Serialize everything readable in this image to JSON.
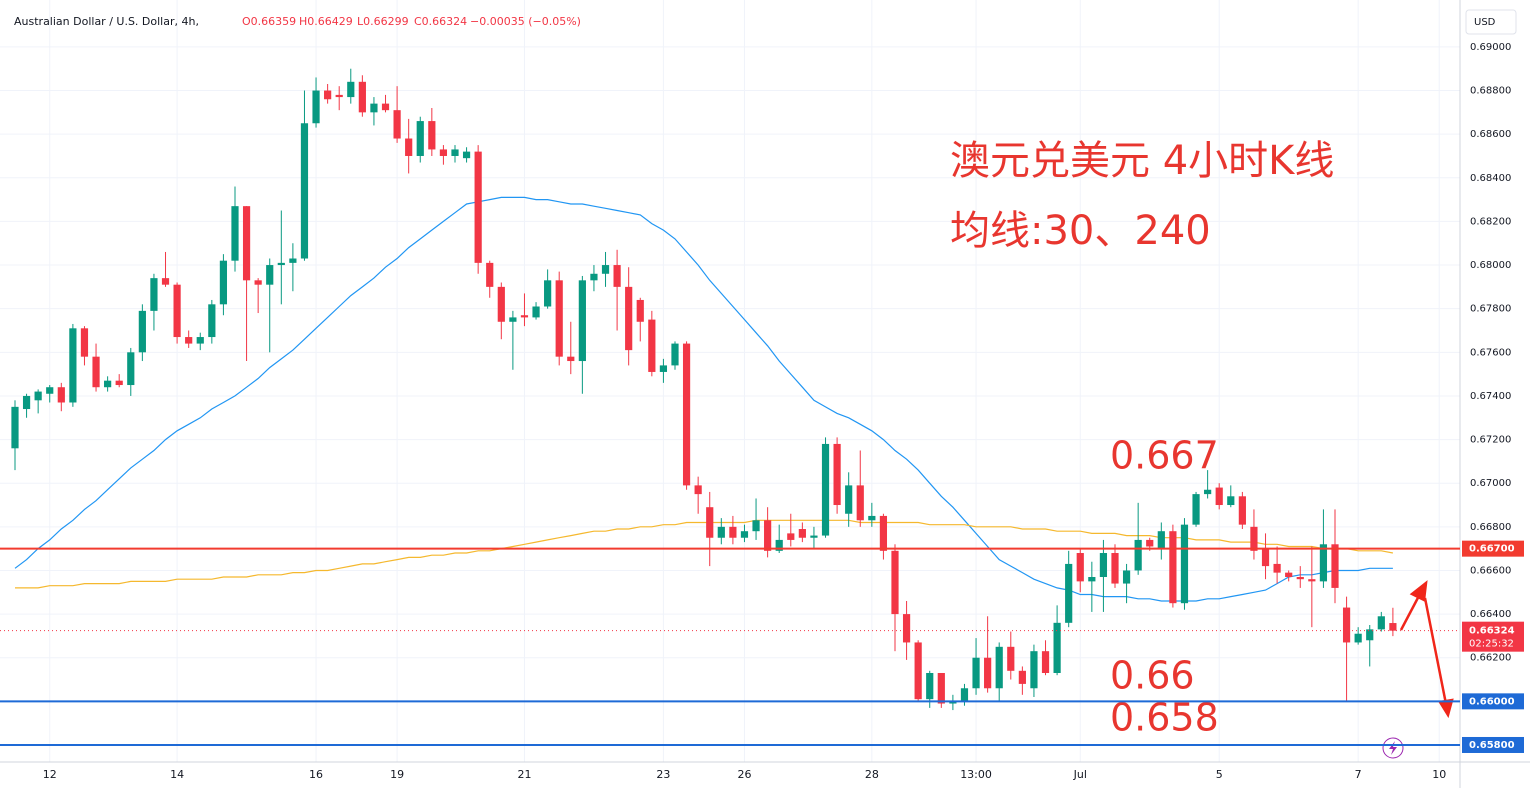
{
  "chart_data": {
    "type": "candlestick",
    "title": "Australian Dollar / U.S. Dollar, 4h,",
    "ohlc_header": [
      "O0.66359",
      "H0.66429",
      "L0.66299",
      "C0.66324",
      "−0.00035 (−0.05%)"
    ],
    "currency": "USD",
    "annotations": [
      "澳元兑美元 4小时K线",
      "均线:30、240",
      "0.667",
      "0.66",
      "0.658"
    ],
    "categories": [
      null,
      null,
      null,
      "12",
      null,
      null,
      null,
      null,
      null,
      null,
      null,
      null,
      null,
      null,
      "14",
      null,
      null,
      null,
      null,
      null,
      null,
      null,
      null,
      null,
      null,
      null,
      "16",
      null,
      null,
      null,
      null,
      null,
      null,
      "19",
      null,
      null,
      null,
      null,
      null,
      null,
      null,
      null,
      null,
      null,
      "21",
      null,
      null,
      null,
      null,
      null,
      null,
      null,
      null,
      null,
      null,
      null,
      "23",
      null,
      null,
      null,
      null,
      null,
      null,
      "26",
      null,
      null,
      null,
      null,
      null,
      null,
      null,
      null,
      null,
      null,
      "28",
      null,
      null,
      null,
      null,
      null,
      null,
      null,
      null,
      "13:00",
      null,
      null,
      null,
      null,
      null,
      null,
      null,
      null,
      "Jul",
      null,
      null,
      null,
      null,
      null,
      null,
      null,
      null,
      null,
      null,
      null,
      "5",
      null,
      null,
      null,
      null,
      null,
      null,
      null,
      null,
      null,
      null,
      null,
      "7",
      null,
      null,
      null,
      null,
      null,
      null,
      "10"
    ],
    "open": [
      0.6716,
      0.6734,
      0.6738,
      0.6741,
      0.6744,
      0.6737,
      0.6771,
      0.6758,
      0.6744,
      0.6747,
      0.6745,
      0.676,
      0.6779,
      0.6794,
      0.6791,
      0.6767,
      0.6764,
      0.6767,
      0.6782,
      0.6802,
      0.6827,
      0.6793,
      0.6791,
      0.68,
      0.6801,
      0.6803,
      0.6865,
      0.688,
      0.6878,
      0.6877,
      0.6884,
      0.687,
      0.6874,
      0.6871,
      0.6858,
      0.685,
      0.6866,
      0.6853,
      0.685,
      0.6849,
      0.6852,
      0.6801,
      0.679,
      0.6774,
      0.6777,
      0.6776,
      0.6781,
      0.6793,
      0.6758,
      0.6756,
      0.6793,
      0.6796,
      0.68,
      0.679,
      0.6784,
      0.6775,
      0.6751,
      0.6754,
      0.6764,
      0.6699,
      0.6689,
      0.6675,
      0.668,
      0.6675,
      0.6678,
      0.6683,
      0.6669,
      0.6677,
      0.6679,
      0.6675,
      0.6676,
      0.6718,
      0.6686,
      0.6699,
      0.6683,
      0.6685,
      0.6669,
      0.664,
      0.6627,
      0.6601,
      0.6613,
      0.6599,
      0.66,
      0.6606,
      0.662,
      0.6606,
      0.6625,
      0.6614,
      0.6606,
      0.6623,
      0.6613,
      0.6636,
      0.6668,
      0.6655,
      0.6657,
      0.6668,
      0.6654,
      0.666,
      0.6674,
      0.667,
      0.6678,
      0.6645,
      0.6681,
      0.6695,
      0.6698,
      0.669,
      0.6694,
      0.668,
      0.667,
      0.6663,
      0.6659,
      0.6657,
      0.6656,
      0.6655,
      0.6672,
      0.6643,
      0.6627,
      0.6628,
      0.6633,
      0.66359,
      null,
      null,
      null,
      null
    ],
    "high": [
      0.6738,
      0.6741,
      0.6743,
      0.6745,
      0.6746,
      0.6773,
      0.6772,
      0.6764,
      0.6749,
      0.675,
      0.6762,
      0.6782,
      0.6796,
      0.6806,
      0.6792,
      0.677,
      0.6769,
      0.6784,
      0.6805,
      0.6836,
      0.6827,
      0.6794,
      0.6803,
      0.6825,
      0.681,
      0.688,
      0.6886,
      0.6883,
      0.6882,
      0.689,
      0.6887,
      0.6877,
      0.6878,
      0.6882,
      0.6867,
      0.6868,
      0.6872,
      0.6855,
      0.6855,
      0.6854,
      0.6855,
      0.6802,
      0.6792,
      0.6779,
      0.6787,
      0.6783,
      0.6798,
      0.6797,
      0.6774,
      0.6795,
      0.68,
      0.6806,
      0.6807,
      0.6799,
      0.6785,
      0.6779,
      0.6757,
      0.6765,
      0.6765,
      0.6703,
      0.6696,
      0.6684,
      0.6685,
      0.6681,
      0.6693,
      0.6689,
      0.6681,
      0.6686,
      0.6682,
      0.668,
      0.6721,
      0.6721,
      0.6705,
      0.6715,
      0.6691,
      0.6686,
      0.6672,
      0.6646,
      0.6628,
      0.6614,
      0.6613,
      0.6603,
      0.6608,
      0.6629,
      0.6639,
      0.6627,
      0.6632,
      0.6616,
      0.6626,
      0.6628,
      0.6644,
      0.6669,
      0.667,
      0.6664,
      0.6674,
      0.6672,
      0.6663,
      0.6691,
      0.6675,
      0.6682,
      0.6681,
      0.6684,
      0.6696,
      0.6706,
      0.67,
      0.6699,
      0.6696,
      0.6688,
      0.6677,
      0.6671,
      0.666,
      0.6662,
      0.6671,
      0.6688,
      0.6688,
      0.6648,
      0.6634,
      0.6635,
      0.6641,
      0.66429,
      null,
      null,
      null,
      null
    ],
    "low": [
      0.6706,
      0.673,
      0.6732,
      0.6737,
      0.6733,
      0.6735,
      0.6754,
      0.6742,
      0.6742,
      0.6744,
      0.674,
      0.6756,
      0.677,
      0.679,
      0.6764,
      0.6762,
      0.6761,
      0.6764,
      0.6777,
      0.6797,
      0.6756,
      0.6778,
      0.676,
      0.6782,
      0.6788,
      0.6802,
      0.6863,
      0.6874,
      0.6871,
      0.6874,
      0.6868,
      0.6864,
      0.687,
      0.6856,
      0.6842,
      0.6847,
      0.685,
      0.6846,
      0.6847,
      0.6847,
      0.6796,
      0.6785,
      0.6766,
      0.6752,
      0.6772,
      0.6775,
      0.678,
      0.6754,
      0.675,
      0.6741,
      0.6788,
      0.679,
      0.677,
      0.6754,
      0.6765,
      0.6749,
      0.6746,
      0.6752,
      0.6697,
      0.6686,
      0.6662,
      0.6672,
      0.6672,
      0.6673,
      0.6674,
      0.6666,
      0.6668,
      0.6671,
      0.6673,
      0.667,
      0.6675,
      0.6686,
      0.668,
      0.668,
      0.668,
      0.6665,
      0.6623,
      0.6619,
      0.66,
      0.6597,
      0.6597,
      0.6596,
      0.6598,
      0.6603,
      0.6604,
      0.66,
      0.661,
      0.6603,
      0.6602,
      0.6612,
      0.6612,
      0.6634,
      0.665,
      0.6641,
      0.6641,
      0.6652,
      0.6645,
      0.6658,
      0.6669,
      0.6665,
      0.6643,
      0.6642,
      0.668,
      0.6693,
      0.6688,
      0.6689,
      0.6679,
      0.6665,
      0.6656,
      0.6654,
      0.6655,
      0.6652,
      0.6634,
      0.6652,
      0.6645,
      0.66,
      0.6626,
      0.6616,
      0.6632,
      0.66299,
      null,
      null,
      null,
      null
    ],
    "close": [
      0.6735,
      0.674,
      0.6742,
      0.6744,
      0.6737,
      0.6771,
      0.6758,
      0.6744,
      0.6747,
      0.6745,
      0.676,
      0.6779,
      0.6794,
      0.6791,
      0.6767,
      0.6764,
      0.6767,
      0.6782,
      0.6802,
      0.6827,
      0.6793,
      0.6791,
      0.68,
      0.6801,
      0.6803,
      0.6865,
      0.688,
      0.6876,
      0.6877,
      0.6884,
      0.687,
      0.6874,
      0.6871,
      0.6858,
      0.685,
      0.6866,
      0.6853,
      0.685,
      0.6853,
      0.6852,
      0.6801,
      0.679,
      0.6774,
      0.6776,
      0.6776,
      0.6781,
      0.6793,
      0.6758,
      0.6756,
      0.6793,
      0.6796,
      0.68,
      0.679,
      0.6761,
      0.6774,
      0.6751,
      0.6754,
      0.6764,
      0.6699,
      0.6695,
      0.6675,
      0.668,
      0.6675,
      0.6678,
      0.6683,
      0.6669,
      0.6674,
      0.6674,
      0.6675,
      0.6676,
      0.6718,
      0.669,
      0.6699,
      0.6683,
      0.6685,
      0.6669,
      0.664,
      0.6627,
      0.6601,
      0.6613,
      0.6599,
      0.66,
      0.6606,
      0.662,
      0.6606,
      0.6625,
      0.6614,
      0.6608,
      0.6623,
      0.6613,
      0.6636,
      0.6663,
      0.6655,
      0.6657,
      0.6668,
      0.6654,
      0.666,
      0.6674,
      0.6671,
      0.6678,
      0.6645,
      0.6681,
      0.6695,
      0.6697,
      0.669,
      0.6694,
      0.6681,
      0.6669,
      0.6662,
      0.6659,
      0.6657,
      0.6656,
      0.6655,
      0.6672,
      0.6652,
      0.6627,
      0.6631,
      0.6633,
      0.6639,
      0.66324,
      null,
      null,
      null,
      null
    ],
    "up_color": "#089981",
    "down_color": "#f23645",
    "overlays": [
      {
        "color": "#2196f3",
        "values": [
          0.6661,
          0.6665,
          0.667,
          0.6674,
          0.6679,
          0.6683,
          0.6688,
          0.6692,
          0.6697,
          0.6702,
          0.6707,
          0.6711,
          0.6715,
          0.672,
          0.6724,
          0.6727,
          0.673,
          0.6734,
          0.6737,
          0.674,
          0.6744,
          0.6748,
          0.6753,
          0.6757,
          0.6761,
          0.6766,
          0.6771,
          0.6776,
          0.6781,
          0.6786,
          0.679,
          0.6794,
          0.6799,
          0.6803,
          0.6808,
          0.6812,
          0.6816,
          0.682,
          0.6824,
          0.6828,
          0.6829,
          0.683,
          0.6831,
          0.6831,
          0.6831,
          0.683,
          0.683,
          0.6829,
          0.6828,
          0.6828,
          0.6827,
          0.6826,
          0.6825,
          0.6824,
          0.6823,
          0.6819,
          0.6816,
          0.6812,
          0.6806,
          0.68,
          0.6793,
          0.6787,
          0.6781,
          0.6775,
          0.6769,
          0.6763,
          0.6756,
          0.675,
          0.6744,
          0.6738,
          0.6735,
          0.6732,
          0.673,
          0.6727,
          0.6724,
          0.672,
          0.6715,
          0.6711,
          0.6706,
          0.67,
          0.6694,
          0.6689,
          0.6683,
          0.6677,
          0.6671,
          0.6665,
          0.6662,
          0.6659,
          0.6656,
          0.6654,
          0.6652,
          0.6651,
          0.6649,
          0.6649,
          0.6648,
          0.6648,
          0.6648,
          0.6647,
          0.6647,
          0.6646,
          0.6646,
          0.6646,
          0.6646,
          0.6647,
          0.6647,
          0.6648,
          0.6649,
          0.665,
          0.6651,
          0.6654,
          0.6657,
          0.6658,
          0.6658,
          0.6659,
          0.666,
          0.666,
          0.666,
          0.6661,
          0.6661,
          0.6661,
          null,
          null,
          null,
          null
        ]
      },
      {
        "color": "#f5b82e",
        "values": [
          0.6652,
          0.6652,
          0.6652,
          0.6653,
          0.6653,
          0.6653,
          0.6654,
          0.6654,
          0.6654,
          0.6654,
          0.6655,
          0.6655,
          0.6655,
          0.6655,
          0.6656,
          0.6656,
          0.6656,
          0.6656,
          0.6657,
          0.6657,
          0.6657,
          0.6658,
          0.6658,
          0.6658,
          0.6659,
          0.6659,
          0.666,
          0.666,
          0.6661,
          0.6662,
          0.6663,
          0.6663,
          0.6664,
          0.6665,
          0.6666,
          0.6666,
          0.6667,
          0.6667,
          0.6668,
          0.6668,
          0.6669,
          0.6669,
          0.667,
          0.6671,
          0.6672,
          0.6673,
          0.6674,
          0.6675,
          0.6676,
          0.6677,
          0.6678,
          0.6678,
          0.6679,
          0.6679,
          0.668,
          0.668,
          0.6681,
          0.6681,
          0.6682,
          0.6682,
          0.6682,
          0.6682,
          0.6682,
          0.6682,
          0.6683,
          0.6683,
          0.6683,
          0.6683,
          0.6683,
          0.6683,
          0.6683,
          0.6683,
          0.6683,
          0.6682,
          0.6682,
          0.6682,
          0.6682,
          0.6682,
          0.6682,
          0.6681,
          0.6681,
          0.6681,
          0.6681,
          0.668,
          0.668,
          0.668,
          0.668,
          0.6679,
          0.6679,
          0.6679,
          0.6678,
          0.6678,
          0.6678,
          0.6677,
          0.6677,
          0.6677,
          0.6676,
          0.6676,
          0.6676,
          0.6675,
          0.6675,
          0.6675,
          0.6674,
          0.6674,
          0.6674,
          0.6673,
          0.6673,
          0.6673,
          0.6672,
          0.6672,
          0.6671,
          0.6671,
          0.6671,
          0.667,
          0.667,
          0.667,
          0.6669,
          0.6669,
          0.6669,
          0.6668,
          null,
          null,
          null,
          null
        ]
      }
    ],
    "levels": [
      {
        "value": 0.667,
        "label": "0.66700",
        "color": "#f23b2f"
      },
      {
        "value": 0.66,
        "label": "0.66000",
        "color": "#1e6ad6"
      },
      {
        "value": 0.658,
        "label": "0.65800",
        "color": "#1e6ad6"
      }
    ],
    "last_price": {
      "value": 0.66324,
      "label": "0.66324",
      "countdown": "02:25:32",
      "color": "#f23645"
    },
    "ylim": [
      0.65722,
      0.69215
    ],
    "yticks": [
      {
        "value": 0.662,
        "label": "0.66200"
      },
      {
        "value": 0.664,
        "label": "0.66400"
      },
      {
        "value": 0.666,
        "label": "0.66600"
      },
      {
        "value": 0.668,
        "label": "0.66800"
      },
      {
        "value": 0.67,
        "label": "0.67000"
      },
      {
        "value": 0.672,
        "label": "0.67200"
      },
      {
        "value": 0.674,
        "label": "0.67400"
      },
      {
        "value": 0.676,
        "label": "0.67600"
      },
      {
        "value": 0.678,
        "label": "0.67800"
      },
      {
        "value": 0.68,
        "label": "0.68000"
      },
      {
        "value": 0.682,
        "label": "0.68200"
      },
      {
        "value": 0.684,
        "label": "0.68400"
      },
      {
        "value": 0.686,
        "label": "0.68600"
      },
      {
        "value": 0.688,
        "label": "0.68800"
      },
      {
        "value": 0.69,
        "label": "0.69000"
      }
    ],
    "grid": true
  }
}
